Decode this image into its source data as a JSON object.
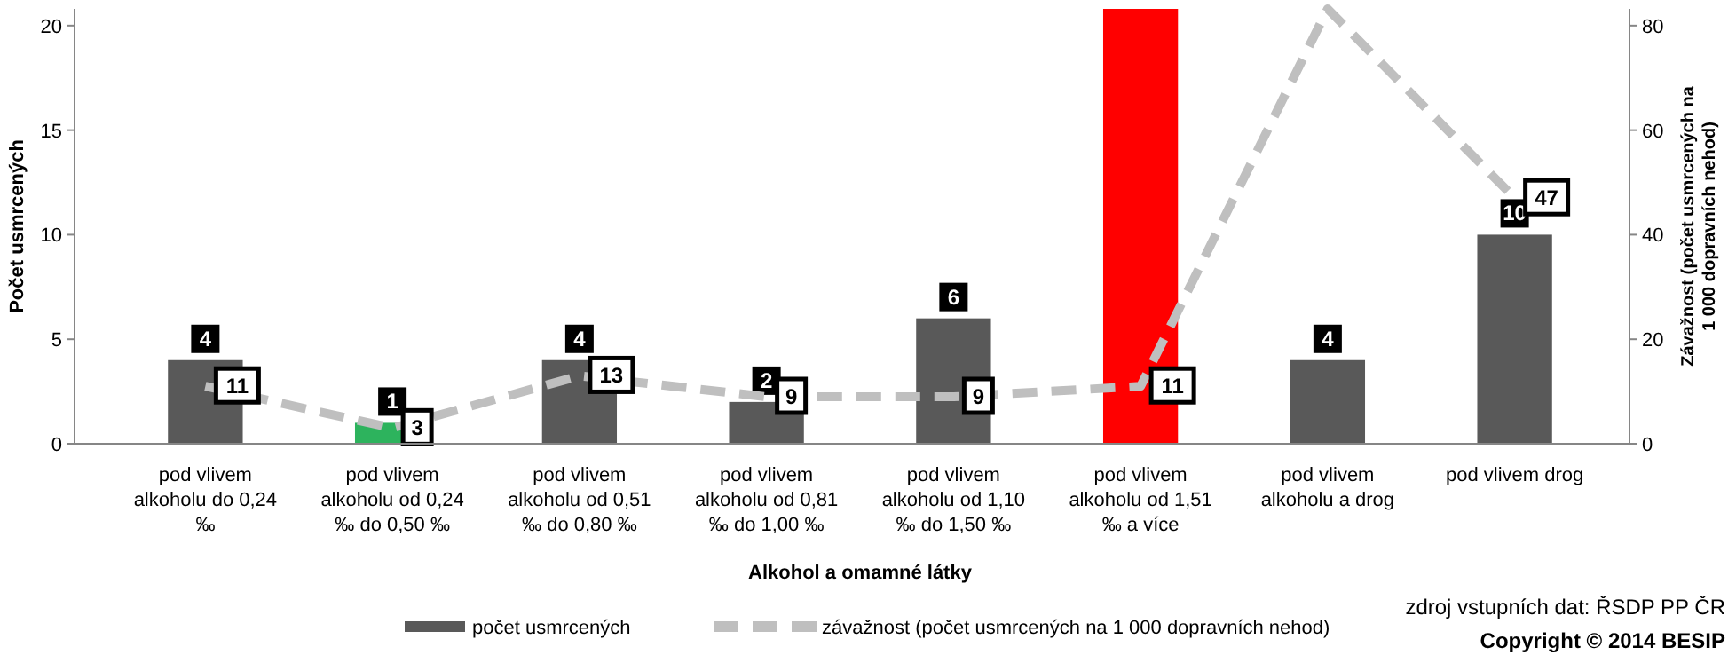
{
  "chart_data": {
    "type": "bar",
    "xlabel": "Alkohol a omamné látky",
    "ylabel": "Počet usmrcených",
    "y2label": "Závažnost (počet usmrcených na 1 000 dopravních nehod)",
    "categories": [
      "pod vlivem alkoholu do 0,24 ‰",
      "pod vlivem alkoholu od 0,24 ‰ do 0,50 ‰",
      "pod vlivem alkoholu od 0,51 ‰ do 0,80 ‰",
      "pod vlivem alkoholu od 0,81 ‰ do 1,00 ‰",
      "pod vlivem alkoholu od 1,10 ‰ do 1,50 ‰",
      "pod vlivem alkoholu od 1,51 ‰ a více",
      "pod vlivem alkoholu a drog",
      "pod vlivem drog"
    ],
    "series": [
      {
        "name": "počet usmrcených",
        "type": "bar",
        "color": "#595959",
        "colors": [
          "#595959",
          "#2db35d",
          "#595959",
          "#595959",
          "#595959",
          "#ff0000",
          "#595959",
          "#595959"
        ],
        "values": [
          4,
          1,
          4,
          2,
          6,
          20.8,
          4,
          10
        ],
        "value_labels": [
          "4",
          "1",
          "4",
          "2",
          "6",
          null,
          "4",
          "10"
        ]
      },
      {
        "name": "závažnost (počet usmrcených na 1 000 dopravních nehod)",
        "type": "line",
        "axis": "y2",
        "color": "#bfbfbf",
        "line_style": "dashed",
        "values": [
          11,
          3,
          13,
          9,
          9,
          11,
          83.2,
          47
        ],
        "value_labels": [
          "11",
          "3",
          "13",
          "9",
          "9",
          "11",
          null,
          "47"
        ]
      }
    ],
    "ylim": [
      0,
      20.8
    ],
    "yticks": [
      0,
      5,
      10,
      15,
      20
    ],
    "y2lim": [
      0,
      83.2
    ],
    "y2ticks": [
      0,
      20,
      40,
      60,
      80
    ],
    "legend": "bottom",
    "annotations": [
      "zdroj vstupních dat: ŘSDP PP ČR",
      "Copyright © 2014 BESIP"
    ]
  }
}
